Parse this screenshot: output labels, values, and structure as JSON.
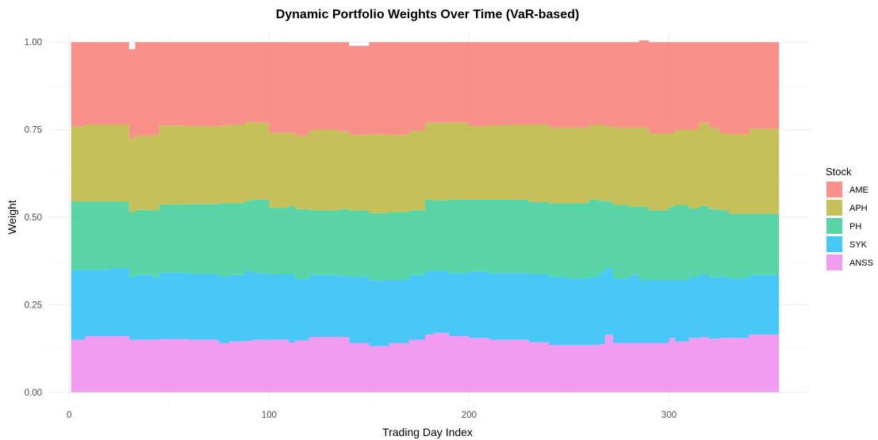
{
  "chart_data": {
    "type": "area",
    "stacked": true,
    "title": "Dynamic Portfolio Weights Over Time (VaR-based)",
    "xlabel": "Trading Day Index",
    "ylabel": "Weight",
    "xlim": [
      -10,
      370
    ],
    "ylim": [
      -0.03,
      1.03
    ],
    "x_ticks": [
      0,
      100,
      200,
      300
    ],
    "x_tick_labels": [
      "0",
      "100",
      "200",
      "300"
    ],
    "y_ticks": [
      0,
      0.25,
      0.5,
      0.75,
      1.0
    ],
    "y_tick_labels": [
      "0.00",
      "0.25",
      "0.50",
      "0.75",
      "1.00"
    ],
    "grid": true,
    "legend": {
      "title": "Stock",
      "position": "right"
    },
    "stack_order": [
      "ANSS",
      "SYK",
      "PH",
      "APH",
      "AME"
    ],
    "x": [
      1,
      8,
      20,
      30,
      33,
      42,
      45,
      60,
      75,
      80,
      88,
      92,
      100,
      110,
      113,
      120,
      135,
      140,
      150,
      160,
      170,
      178,
      182,
      190,
      200,
      210,
      220,
      230,
      240,
      250,
      260,
      265,
      268,
      272,
      280,
      285,
      290,
      300,
      303,
      310,
      315,
      320,
      325,
      330,
      340,
      350,
      355
    ],
    "series": [
      {
        "name": "AME",
        "color": "#F8766D",
        "values": [
          0.24,
          0.235,
          0.235,
          0.255,
          0.267,
          0.265,
          0.238,
          0.24,
          0.238,
          0.235,
          0.228,
          0.23,
          0.258,
          0.258,
          0.267,
          0.25,
          0.255,
          0.255,
          0.263,
          0.265,
          0.253,
          0.23,
          0.23,
          0.23,
          0.24,
          0.237,
          0.235,
          0.235,
          0.245,
          0.245,
          0.235,
          0.235,
          0.24,
          0.245,
          0.245,
          0.25,
          0.26,
          0.26,
          0.25,
          0.25,
          0.23,
          0.245,
          0.26,
          0.263,
          0.247,
          0.247,
          0.247
        ]
      },
      {
        "name": "APH",
        "color": "#B7B02F",
        "values": [
          0.215,
          0.22,
          0.22,
          0.21,
          0.212,
          0.215,
          0.225,
          0.222,
          0.222,
          0.225,
          0.225,
          0.22,
          0.215,
          0.21,
          0.21,
          0.23,
          0.222,
          0.215,
          0.225,
          0.22,
          0.227,
          0.22,
          0.222,
          0.22,
          0.21,
          0.213,
          0.215,
          0.222,
          0.215,
          0.215,
          0.215,
          0.218,
          0.215,
          0.22,
          0.225,
          0.225,
          0.22,
          0.21,
          0.215,
          0.225,
          0.238,
          0.232,
          0.22,
          0.227,
          0.243,
          0.243,
          0.243
        ]
      },
      {
        "name": "PH",
        "color": "#2FCB8F",
        "values": [
          0.195,
          0.195,
          0.19,
          0.185,
          0.186,
          0.192,
          0.195,
          0.2,
          0.21,
          0.205,
          0.2,
          0.21,
          0.19,
          0.195,
          0.2,
          0.185,
          0.19,
          0.19,
          0.193,
          0.195,
          0.185,
          0.205,
          0.2,
          0.21,
          0.205,
          0.21,
          0.21,
          0.205,
          0.21,
          0.215,
          0.22,
          0.205,
          0.19,
          0.21,
          0.195,
          0.21,
          0.2,
          0.21,
          0.215,
          0.195,
          0.195,
          0.195,
          0.19,
          0.185,
          0.175,
          0.175,
          0.175
        ]
      },
      {
        "name": "SYK",
        "color": "#19BAF4",
        "values": [
          0.2,
          0.19,
          0.195,
          0.18,
          0.185,
          0.178,
          0.19,
          0.188,
          0.19,
          0.19,
          0.2,
          0.19,
          0.187,
          0.195,
          0.175,
          0.177,
          0.175,
          0.19,
          0.187,
          0.18,
          0.185,
          0.18,
          0.178,
          0.18,
          0.19,
          0.19,
          0.19,
          0.195,
          0.195,
          0.19,
          0.195,
          0.205,
          0.19,
          0.185,
          0.195,
          0.18,
          0.18,
          0.165,
          0.175,
          0.175,
          0.18,
          0.175,
          0.175,
          0.17,
          0.17,
          0.17,
          0.17
        ]
      },
      {
        "name": "ANSS",
        "color": "#EE82EE",
        "values": [
          0.15,
          0.16,
          0.16,
          0.15,
          0.15,
          0.15,
          0.152,
          0.15,
          0.14,
          0.145,
          0.147,
          0.15,
          0.15,
          0.142,
          0.148,
          0.158,
          0.158,
          0.14,
          0.132,
          0.14,
          0.15,
          0.165,
          0.17,
          0.16,
          0.155,
          0.15,
          0.15,
          0.143,
          0.135,
          0.135,
          0.135,
          0.137,
          0.165,
          0.14,
          0.14,
          0.14,
          0.14,
          0.155,
          0.145,
          0.155,
          0.157,
          0.153,
          0.155,
          0.155,
          0.165,
          0.165,
          0.165
        ]
      }
    ]
  }
}
